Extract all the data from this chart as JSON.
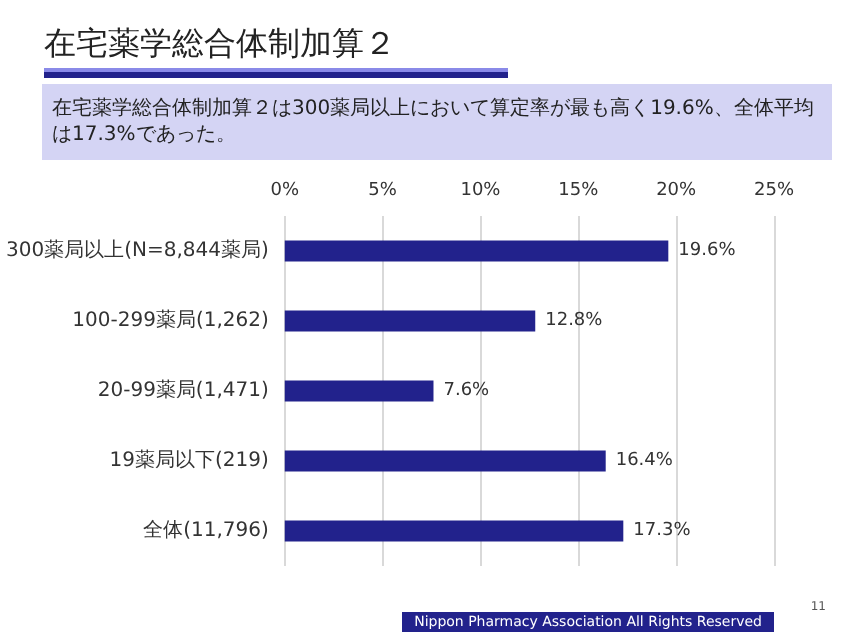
{
  "chart_data": {
    "type": "bar",
    "orientation": "horizontal",
    "title": "在宅薬学総合体制加算２",
    "subtitle": "在宅薬学総合体制加算２は300薬局以上において算定率が最も高く19.6%、全体平均は17.3%であった。",
    "categories": [
      "300薬局以上(N=8,844薬局)",
      "100-299薬局(1,262)",
      "20-99薬局(1,471)",
      "19薬局以下(219)",
      "全体(11,796)"
    ],
    "values": [
      19.6,
      12.8,
      7.6,
      16.4,
      17.3
    ],
    "value_labels": [
      "19.6%",
      "12.8%",
      "7.6%",
      "16.4%",
      "17.3%"
    ],
    "color": "#22228c",
    "xlim": [
      0,
      25
    ],
    "xticks": [
      {
        "value": 0,
        "label": "0%"
      },
      {
        "value": 5,
        "label": "5%"
      },
      {
        "value": 10,
        "label": "10%"
      },
      {
        "value": 15,
        "label": "15%"
      },
      {
        "value": 20,
        "label": "20%"
      },
      {
        "value": 25,
        "label": "25%"
      }
    ],
    "grid": "x",
    "annotations": [
      "Nippon Pharmacy Association All Rights Reserved",
      "11"
    ]
  }
}
